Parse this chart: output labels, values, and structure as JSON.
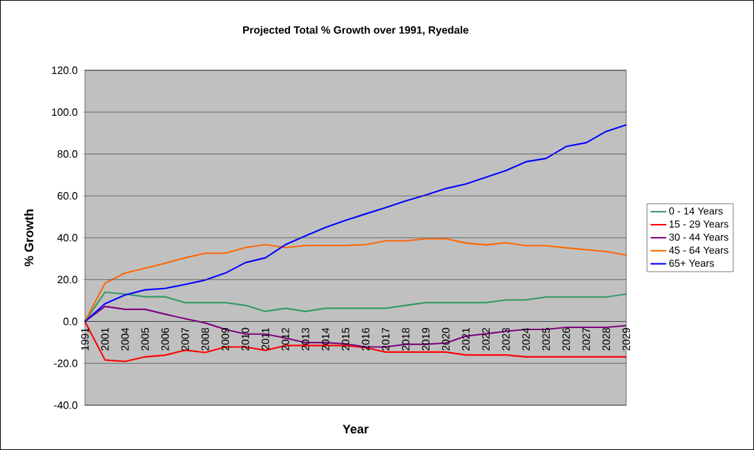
{
  "chart_data": {
    "type": "line",
    "title": "Projected Total % Growth over 1991, Ryedale",
    "xlabel": "Year",
    "ylabel": "% Growth",
    "categories": [
      "1991",
      "2001",
      "2004",
      "2005",
      "2006",
      "2007",
      "2008",
      "2009",
      "2010",
      "2011",
      "2012",
      "2013",
      "2014",
      "2015",
      "2016",
      "2017",
      "2018",
      "2019",
      "2020",
      "2021",
      "2022",
      "2023",
      "2024",
      "2025",
      "2026",
      "2027",
      "2028",
      "2029"
    ],
    "series": [
      {
        "name": "0 - 14 Years",
        "color": "#339966",
        "values": [
          0,
          14.0,
          13.1,
          11.8,
          11.8,
          9.0,
          9.0,
          9.0,
          7.7,
          4.8,
          6.3,
          4.8,
          6.3,
          6.3,
          6.3,
          6.3,
          7.7,
          9.0,
          9.0,
          9.0,
          9.0,
          10.3,
          10.3,
          11.7,
          11.7,
          11.7,
          11.7,
          13.1
        ]
      },
      {
        "name": "15 - 29 Years",
        "color": "#ff0000",
        "values": [
          0,
          -18.4,
          -19.1,
          -16.9,
          -16.1,
          -13.7,
          -14.8,
          -12.2,
          -12.2,
          -13.8,
          -11.5,
          -11.5,
          -11.5,
          -11.5,
          -12.5,
          -14.6,
          -14.6,
          -14.6,
          -14.6,
          -16.0,
          -16.0,
          -16.0,
          -16.9,
          -16.9,
          -16.9,
          -16.9,
          -16.9,
          -16.9
        ]
      },
      {
        "name": "30 - 44 Years",
        "color": "#800080",
        "values": [
          0,
          7.2,
          5.8,
          5.8,
          3.5,
          1.3,
          -0.7,
          -3.8,
          -6.0,
          -6.0,
          -7.9,
          -10.1,
          -10.1,
          -10.7,
          -12.2,
          -12.2,
          -10.9,
          -10.9,
          -10.3,
          -7.0,
          -5.9,
          -4.7,
          -3.8,
          -3.8,
          -2.8,
          -2.8,
          -2.8,
          -2.0
        ]
      },
      {
        "name": "45 - 64 Years",
        "color": "#ff6600",
        "values": [
          0,
          18.3,
          23.1,
          25.4,
          27.8,
          30.4,
          32.6,
          32.6,
          35.3,
          36.7,
          35.3,
          36.3,
          36.3,
          36.3,
          36.7,
          38.5,
          38.5,
          39.5,
          39.5,
          37.5,
          36.6,
          37.6,
          36.2,
          36.2,
          35.2,
          34.3,
          33.4,
          31.7
        ]
      },
      {
        "name": "65+ Years",
        "color": "#0000ff",
        "values": [
          0,
          8.5,
          12.7,
          15.1,
          15.8,
          17.7,
          19.8,
          23.1,
          28.1,
          30.4,
          36.7,
          40.9,
          44.9,
          48.3,
          51.4,
          54.4,
          57.6,
          60.4,
          63.5,
          65.7,
          68.9,
          72.1,
          76.3,
          77.9,
          83.6,
          85.4,
          90.8,
          93.9
        ]
      }
    ],
    "ylim": [
      -40,
      120
    ],
    "yticks": [
      {
        "value": -40,
        "label": "-40.0"
      },
      {
        "value": -20,
        "label": "-20.0"
      },
      {
        "value": 0,
        "label": "0.0"
      },
      {
        "value": 20,
        "label": "20.0"
      },
      {
        "value": 40,
        "label": "40.0"
      },
      {
        "value": 60,
        "label": "60.0"
      },
      {
        "value": 80,
        "label": "80.0"
      },
      {
        "value": 100,
        "label": "100.0"
      },
      {
        "value": 120,
        "label": "120.0"
      }
    ],
    "grid": "y",
    "legend": "right",
    "marker": "none",
    "line_style": "solid"
  }
}
